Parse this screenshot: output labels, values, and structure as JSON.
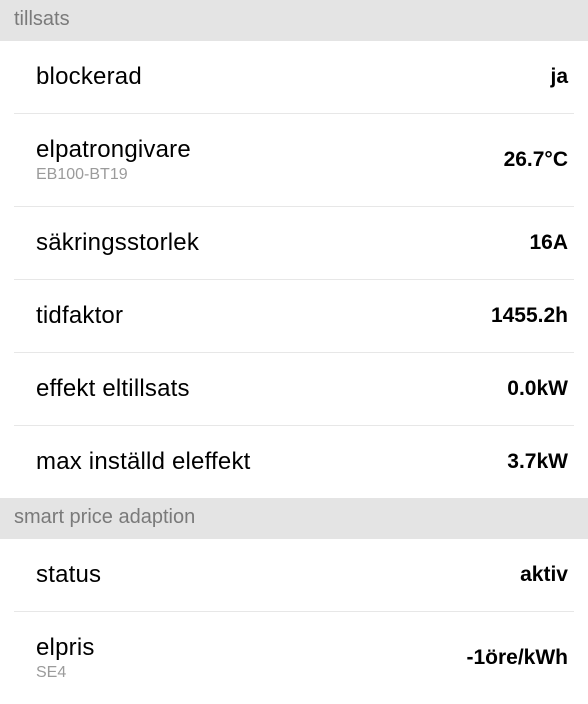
{
  "sections": [
    {
      "header": "tillsats",
      "rows": [
        {
          "label": "blockerad",
          "sublabel": "",
          "value": "ja"
        },
        {
          "label": "elpatrongivare",
          "sublabel": "EB100-BT19",
          "value": "26.7°C"
        },
        {
          "label": "säkringsstorlek",
          "sublabel": "",
          "value": "16A"
        },
        {
          "label": "tidfaktor",
          "sublabel": "",
          "value": "1455.2h"
        },
        {
          "label": "effekt eltillsats",
          "sublabel": "",
          "value": "0.0kW"
        },
        {
          "label": "max inställd eleffekt",
          "sublabel": "",
          "value": "3.7kW"
        }
      ]
    },
    {
      "header": "smart price adaption",
      "rows": [
        {
          "label": "status",
          "sublabel": "",
          "value": "aktiv"
        },
        {
          "label": "elpris",
          "sublabel": "SE4",
          "value": "-1öre/kWh"
        }
      ]
    }
  ]
}
